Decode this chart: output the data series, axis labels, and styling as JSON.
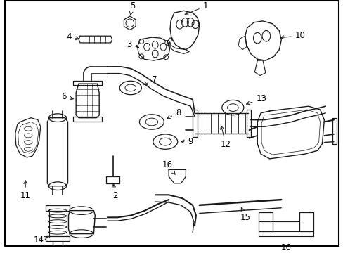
{
  "background_color": "#ffffff",
  "border_color": "#000000",
  "border_linewidth": 1.5,
  "line_color": "#1a1a1a",
  "text_color": "#000000",
  "font_size": 8.5,
  "fig_width": 4.89,
  "fig_height": 3.6,
  "dpi": 100
}
